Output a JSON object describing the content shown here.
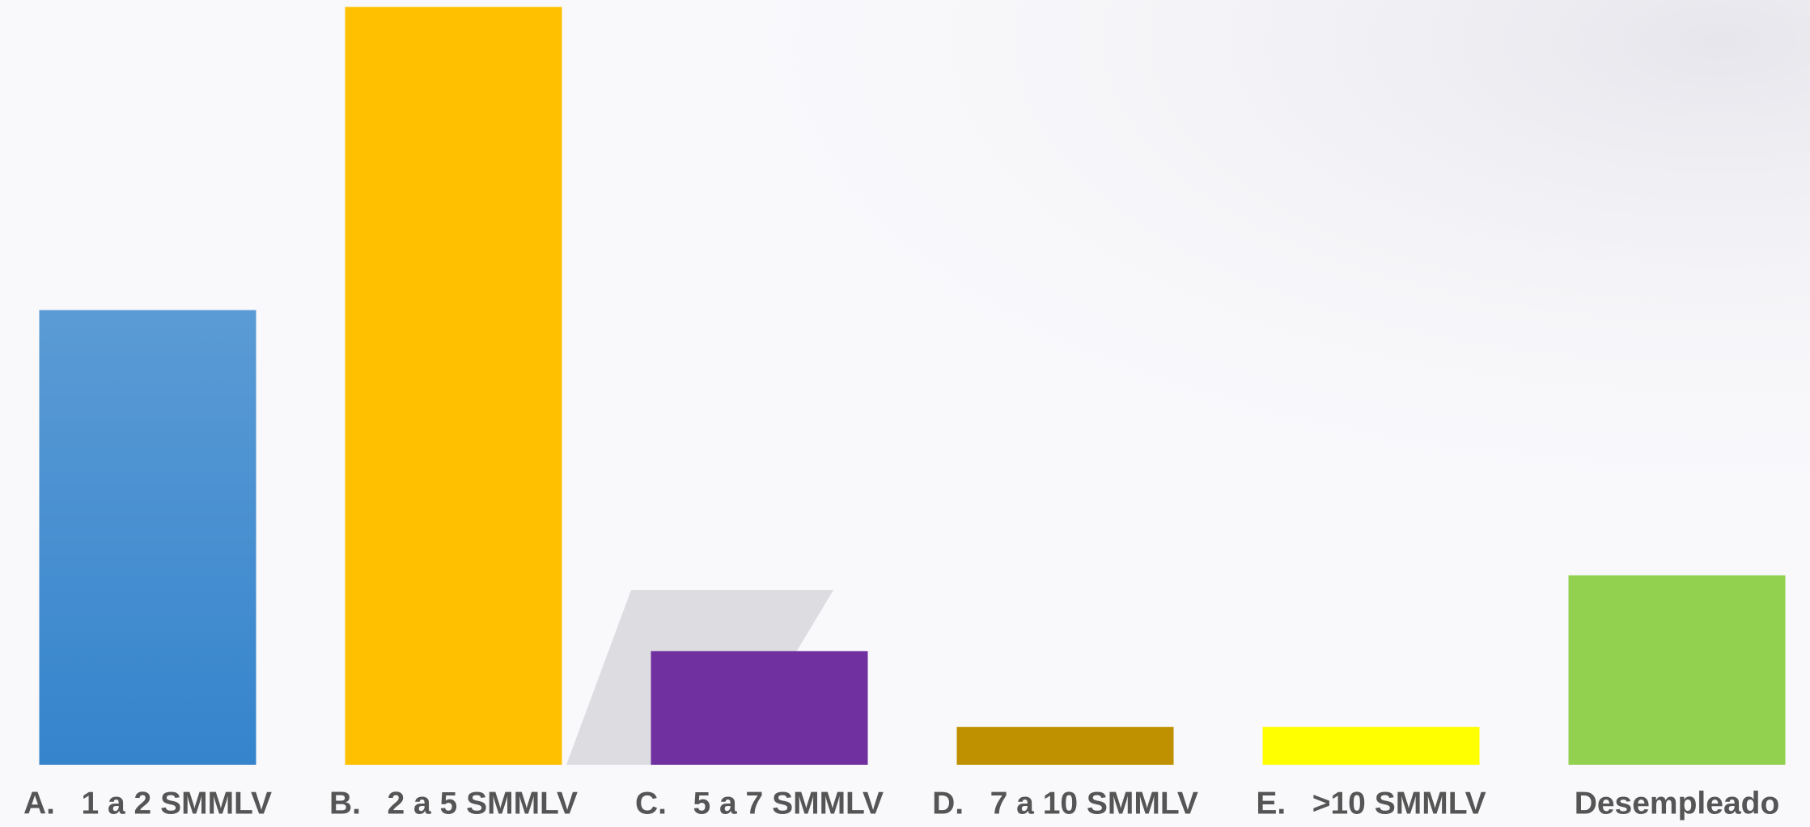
{
  "chart_data": {
    "type": "bar",
    "categories": [
      "A.   1 a 2 SMMLV",
      "B.   2 a 5 SMMLV",
      "C.   5 a 7 SMMLV",
      "D.   7 a 10 SMMLV",
      "E.   >10 SMMLV",
      "Desempleado"
    ],
    "values": [
      12,
      20,
      3,
      1,
      1,
      5
    ],
    "colors": [
      "#4a90d4",
      "#ffc000",
      "#7030a0",
      "#bf9000",
      "#ffff00",
      "#92d050"
    ]
  }
}
